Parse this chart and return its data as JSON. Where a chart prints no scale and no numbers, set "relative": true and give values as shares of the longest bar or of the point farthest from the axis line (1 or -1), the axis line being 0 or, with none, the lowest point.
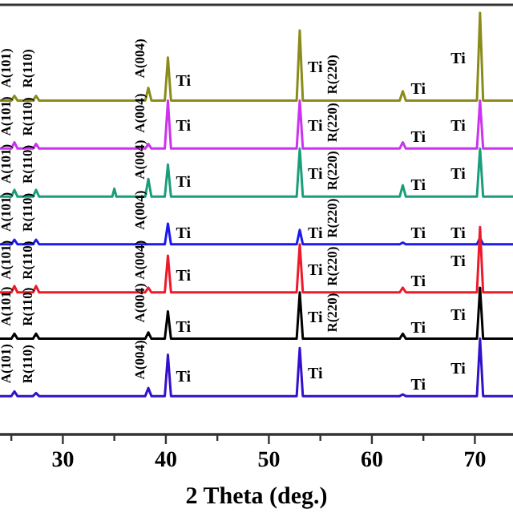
{
  "chart_data": {
    "type": "line",
    "relative": true,
    "xlabel": "2 Theta (deg.)",
    "xlim": [
      23.9,
      73.7
    ],
    "xticks": [
      {
        "value": 25,
        "label": null
      },
      30,
      {
        "value": 35,
        "label": null
      },
      40,
      {
        "value": 45,
        "label": null
      },
      50,
      {
        "value": 55,
        "label": null
      },
      60,
      {
        "value": 65,
        "label": null
      },
      70
    ],
    "grid": false,
    "tick_labels": "x",
    "series": [
      {
        "color": "#8b8b1a",
        "x": [
          23.9,
          25,
          25.3,
          25.6,
          27.1,
          27.4,
          27.7,
          38,
          38.3,
          38.6,
          39.9,
          40.2,
          40.5,
          52.7,
          53,
          53.3,
          62.7,
          63,
          63.3,
          70.2,
          70.5,
          70.8,
          73.7
        ],
        "values": [
          0.792,
          0.792,
          0.803,
          0.792,
          0.792,
          0.803,
          0.792,
          0.792,
          0.822,
          0.792,
          0.792,
          0.894,
          0.792,
          0.792,
          0.958,
          0.792,
          0.792,
          0.814,
          0.792,
          0.792,
          1.0,
          0.792,
          0.792
        ]
      },
      {
        "color": "#cc33ee",
        "x": [
          23.9,
          25,
          25.3,
          25.6,
          27.1,
          27.4,
          27.7,
          38,
          38.3,
          38.6,
          39.9,
          40.2,
          40.5,
          52.7,
          53,
          53.3,
          62.7,
          63,
          63.3,
          70.2,
          70.5,
          70.8,
          73.7
        ],
        "values": [
          0.678,
          0.678,
          0.693,
          0.678,
          0.678,
          0.689,
          0.678,
          0.678,
          0.689,
          0.678,
          0.678,
          0.792,
          0.678,
          0.678,
          0.792,
          0.678,
          0.678,
          0.693,
          0.678,
          0.678,
          0.792,
          0.678,
          0.678
        ]
      },
      {
        "color": "#1a9e7a",
        "x": [
          23.9,
          25,
          25.3,
          25.6,
          27.1,
          27.4,
          27.7,
          34.8,
          35,
          35.2,
          38,
          38.3,
          38.6,
          39.9,
          40.2,
          40.5,
          52.7,
          53,
          53.3,
          62.7,
          63,
          63.3,
          70.2,
          70.5,
          70.8,
          73.7
        ],
        "values": [
          0.564,
          0.564,
          0.58,
          0.564,
          0.564,
          0.58,
          0.564,
          0.564,
          0.583,
          0.564,
          0.564,
          0.606,
          0.564,
          0.564,
          0.64,
          0.564,
          0.564,
          0.678,
          0.564,
          0.564,
          0.591,
          0.564,
          0.564,
          0.678,
          0.564,
          0.564
        ]
      },
      {
        "color": "#1a1aee",
        "x": [
          23.9,
          25,
          25.3,
          25.6,
          27.1,
          27.4,
          27.7,
          39.9,
          40.2,
          40.5,
          52.7,
          53,
          53.3,
          62.7,
          63,
          63.3,
          70.2,
          70.5,
          70.8,
          73.7
        ],
        "values": [
          0.451,
          0.451,
          0.462,
          0.451,
          0.451,
          0.462,
          0.451,
          0.451,
          0.5,
          0.451,
          0.451,
          0.485,
          0.451,
          0.451,
          0.455,
          0.451,
          0.451,
          0.466,
          0.451,
          0.451
        ]
      },
      {
        "color": "#ee1a2a",
        "x": [
          23.9,
          25,
          25.3,
          25.6,
          27.1,
          27.4,
          27.7,
          38,
          38.3,
          38.6,
          39.9,
          40.2,
          40.5,
          52.7,
          53,
          53.3,
          62.7,
          63,
          63.3,
          70.2,
          70.5,
          70.8,
          73.7
        ],
        "values": [
          0.337,
          0.337,
          0.352,
          0.337,
          0.337,
          0.352,
          0.337,
          0.337,
          0.348,
          0.337,
          0.337,
          0.424,
          0.337,
          0.337,
          0.451,
          0.337,
          0.337,
          0.348,
          0.337,
          0.337,
          0.492,
          0.337,
          0.337
        ]
      },
      {
        "color": "#000000",
        "x": [
          23.9,
          25,
          25.3,
          25.6,
          27.1,
          27.4,
          27.7,
          38,
          38.3,
          38.6,
          39.9,
          40.2,
          40.5,
          52.7,
          53,
          53.3,
          62.7,
          63,
          63.3,
          70.2,
          70.5,
          70.8,
          73.7
        ],
        "values": [
          0.227,
          0.227,
          0.239,
          0.227,
          0.227,
          0.239,
          0.227,
          0.227,
          0.242,
          0.227,
          0.227,
          0.292,
          0.227,
          0.227,
          0.337,
          0.227,
          0.227,
          0.239,
          0.227,
          0.227,
          0.348,
          0.227,
          0.227
        ]
      },
      {
        "color": "#3311cc",
        "x": [
          23.9,
          25,
          25.3,
          25.6,
          27.1,
          27.4,
          27.7,
          38,
          38.3,
          38.6,
          39.9,
          40.2,
          40.5,
          52.7,
          53,
          53.3,
          62.7,
          63,
          63.3,
          70.2,
          70.5,
          70.8,
          73.7
        ],
        "values": [
          0.091,
          0.091,
          0.102,
          0.091,
          0.091,
          0.098,
          0.091,
          0.091,
          0.11,
          0.091,
          0.091,
          0.189,
          0.091,
          0.091,
          0.205,
          0.091,
          0.091,
          0.095,
          0.091,
          0.091,
          0.227,
          0.091,
          0.091
        ]
      }
    ],
    "annotations": [
      {
        "text": "A(101)",
        "x": 24.9,
        "y": 0.807
      },
      {
        "text": "R(110)",
        "x": 27.0,
        "y": 0.807
      },
      {
        "text": "A(004)",
        "x": 37.9,
        "y": 0.83
      },
      {
        "text": "Ti",
        "x": 40.2,
        "y": 0.894
      },
      {
        "text": "Ti",
        "x": 53,
        "y": 0.958
      },
      {
        "text": "R(220)",
        "x": 56.6,
        "y": 0.792
      },
      {
        "text": "Ti",
        "x": 63,
        "y": 0.814
      },
      {
        "text": "Ti",
        "x": 70.5,
        "y": 1.0
      },
      {
        "text": "A(101)",
        "x": 24.9,
        "y": 0.693
      },
      {
        "text": "R(110)",
        "x": 27.0,
        "y": 0.693
      },
      {
        "text": "A(004)",
        "x": 37.9,
        "y": 0.7
      },
      {
        "text": "Ti",
        "x": 40.2,
        "y": 0.792
      },
      {
        "text": "Ti",
        "x": 53,
        "y": 0.792
      },
      {
        "text": "R(220)",
        "x": 56.6,
        "y": 0.678
      },
      {
        "text": "Ti",
        "x": 63,
        "y": 0.693
      },
      {
        "text": "Ti",
        "x": 70.5,
        "y": 0.792
      },
      {
        "text": "A(101)",
        "x": 24.9,
        "y": 0.58
      },
      {
        "text": "R(110)",
        "x": 27.0,
        "y": 0.58
      },
      {
        "text": "A(004)",
        "x": 37.9,
        "y": 0.59
      },
      {
        "text": "Ti",
        "x": 40.2,
        "y": 0.64
      },
      {
        "text": "Ti",
        "x": 53,
        "y": 0.678
      },
      {
        "text": "R(220)",
        "x": 56.6,
        "y": 0.564
      },
      {
        "text": "Ti",
        "x": 63,
        "y": 0.591
      },
      {
        "text": "Ti",
        "x": 70.5,
        "y": 0.678
      },
      {
        "text": "A(101)",
        "x": 24.9,
        "y": 0.466
      },
      {
        "text": "R(110)",
        "x": 27.0,
        "y": 0.466
      },
      {
        "text": "A(004)",
        "x": 37.9,
        "y": 0.47
      },
      {
        "text": "Ti",
        "x": 40.2,
        "y": 0.5
      },
      {
        "text": "Ti",
        "x": 53,
        "y": 0.485
      },
      {
        "text": "R(220)",
        "x": 56.6,
        "y": 0.451
      },
      {
        "text": "Ti",
        "x": 63,
        "y": 0.455
      },
      {
        "text": "Ti",
        "x": 70.5,
        "y": 0.466
      },
      {
        "text": "A(101)",
        "x": 24.9,
        "y": 0.352
      },
      {
        "text": "R(110)",
        "x": 27.0,
        "y": 0.352
      },
      {
        "text": "A(004)",
        "x": 37.9,
        "y": 0.352
      },
      {
        "text": "Ti",
        "x": 40.2,
        "y": 0.424
      },
      {
        "text": "Ti",
        "x": 53,
        "y": 0.451
      },
      {
        "text": "R(220)",
        "x": 56.6,
        "y": 0.337
      },
      {
        "text": "Ti",
        "x": 63,
        "y": 0.348
      },
      {
        "text": "Ti",
        "x": 70.5,
        "y": 0.492
      },
      {
        "text": "A(101)",
        "x": 24.9,
        "y": 0.242
      },
      {
        "text": "R(110)",
        "x": 27.0,
        "y": 0.242
      },
      {
        "text": "A(004)",
        "x": 37.9,
        "y": 0.25
      },
      {
        "text": "Ti",
        "x": 40.2,
        "y": 0.292
      },
      {
        "text": "Ti",
        "x": 53,
        "y": 0.337
      },
      {
        "text": "R(220)",
        "x": 56.6,
        "y": 0.227
      },
      {
        "text": "Ti",
        "x": 63,
        "y": 0.239
      },
      {
        "text": "Ti",
        "x": 70.5,
        "y": 0.348
      },
      {
        "text": "A(101)",
        "x": 24.9,
        "y": 0.106
      },
      {
        "text": "R(110)",
        "x": 27.0,
        "y": 0.106
      },
      {
        "text": "A(004)",
        "x": 37.9,
        "y": 0.115
      },
      {
        "text": "Ti",
        "x": 40.2,
        "y": 0.189
      },
      {
        "text": "Ti",
        "x": 53,
        "y": 0.205
      },
      {
        "text": "Ti",
        "x": 63,
        "y": 0.095
      },
      {
        "text": "Ti",
        "x": 70.5,
        "y": 0.227
      }
    ]
  }
}
